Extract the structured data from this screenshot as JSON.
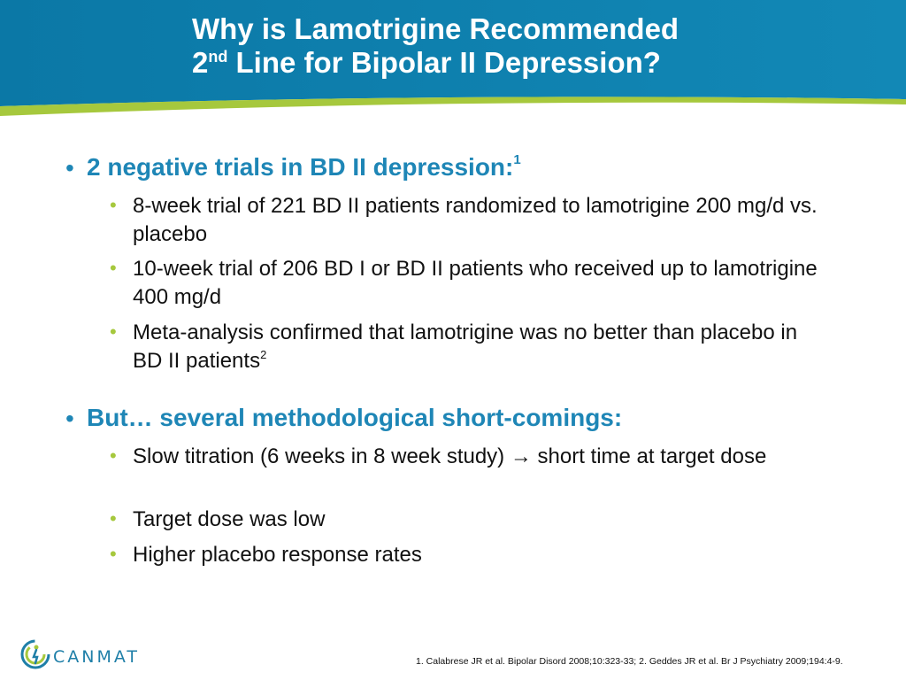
{
  "slide": {
    "title_line1": "Why is Lamotrigine Recommended",
    "title_line2_prefix": "2",
    "title_line2_sup": "nd",
    "title_line2_rest": " Line for Bipolar II Depression?"
  },
  "sections": [
    {
      "heading": "2 negative trials in BD II depression:",
      "heading_sup": "1",
      "items": [
        "8-week trial of 221 BD II patients randomized to lamotrigine 200 mg/d vs. placebo",
        "10-week trial of 206 BD I or BD II patients who received up to lamotrigine 400 mg/d",
        "Meta-analysis confirmed that lamotrigine was no better than placebo in BD II patients"
      ],
      "item3_sup": "2"
    },
    {
      "heading": "But… several methodological short-comings:",
      "item1_before": "Slow titration (6 weeks in 8 week study) ",
      "item1_arrow": "→",
      "item1_after": " short time at target dose",
      "items_rest": [
        "Target dose was low",
        "Higher placebo response rates"
      ]
    }
  ],
  "logo": {
    "text": "CANMAT",
    "icon": "canmat-logo-icon"
  },
  "footnote": "1. Calabrese JR et al. Bipolar Disord 2008;10:323-33; 2. Geddes JR et al. Br J Psychiatry 2009;194:4-9.",
  "colors": {
    "header_blue": "#0f7fae",
    "accent_green": "#a6c83d",
    "heading_blue": "#1e86b6"
  }
}
